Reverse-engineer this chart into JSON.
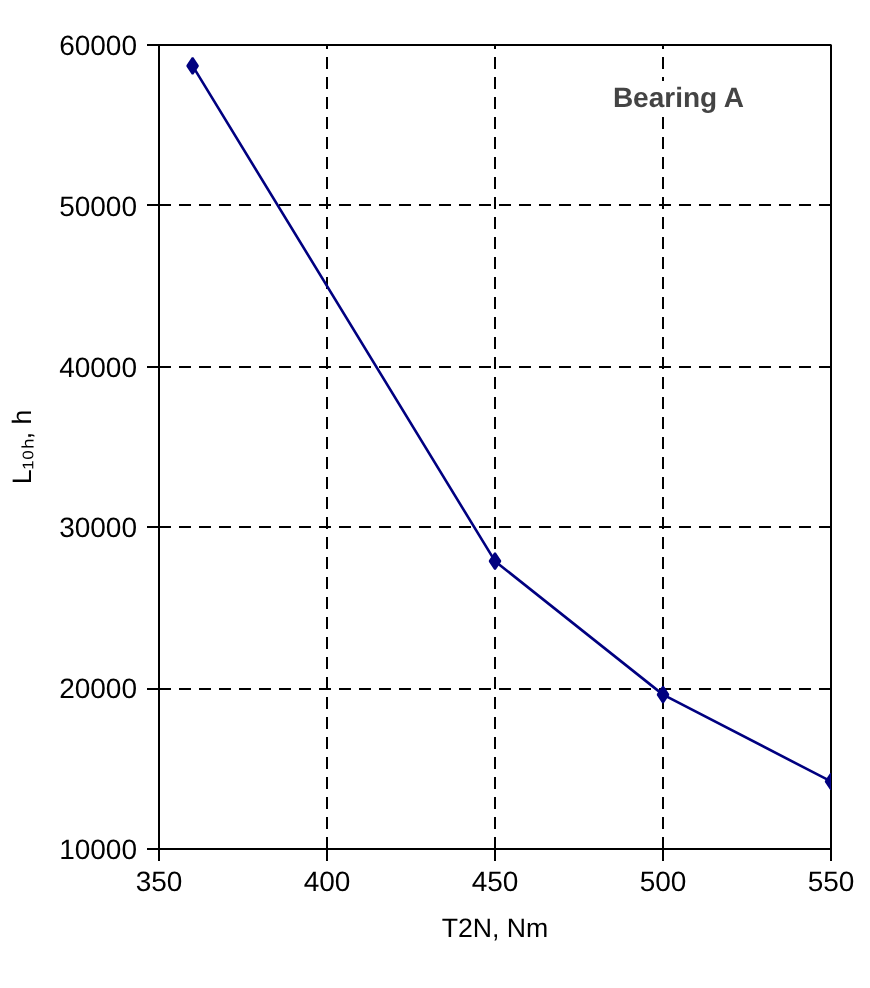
{
  "chart_data": {
    "type": "line",
    "xlabel": "T2N, Nm",
    "ylabel": "L₁₀ₕ, h",
    "x": [
      360,
      450,
      500,
      550
    ],
    "series": [
      {
        "color": "#000080",
        "values": [
          58700,
          27900,
          19600,
          14200
        ]
      }
    ],
    "xlim": [
      350,
      550
    ],
    "xticks": [
      350,
      400,
      450,
      500,
      550
    ],
    "ylim": [
      10000,
      60000
    ],
    "yticks": [
      10000,
      20000,
      30000,
      40000,
      50000,
      60000
    ],
    "grid": true,
    "marker": "diamond",
    "line_style": "solid",
    "annotations": [
      "Bearing A"
    ]
  }
}
